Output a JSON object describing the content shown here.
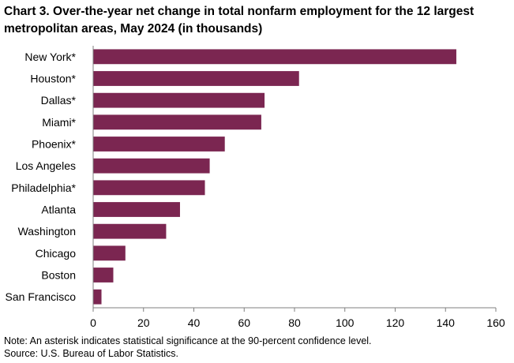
{
  "chart_data": {
    "type": "bar",
    "orientation": "horizontal",
    "title": "Chart 3. Over-the-year net change in total nonfarm employment for the 12 largest metropolitan areas, May 2024 (in thousands)",
    "categories": [
      "New York*",
      "Houston*",
      "Dallas*",
      "Miami*",
      "Phoenix*",
      "Los Angeles",
      "Philadelphia*",
      "Atlanta",
      "Washington",
      "Chicago",
      "Boston",
      "San Francisco"
    ],
    "values": [
      144.3,
      81.8,
      68.1,
      66.8,
      52.3,
      46.3,
      44.4,
      34.5,
      29.0,
      12.8,
      8.0,
      3.3
    ],
    "xlim": [
      0,
      160
    ],
    "xticks": [
      0,
      20,
      40,
      60,
      80,
      100,
      120,
      140,
      160
    ],
    "xlabel": "",
    "ylabel": "",
    "grid": false,
    "legend": "none",
    "bar_color": "#7b2651"
  },
  "notes": {
    "note": "Note: An asterisk indicates statistical significance at the 90-percent confidence level.",
    "source": "Source: U.S. Bureau of Labor Statistics."
  }
}
